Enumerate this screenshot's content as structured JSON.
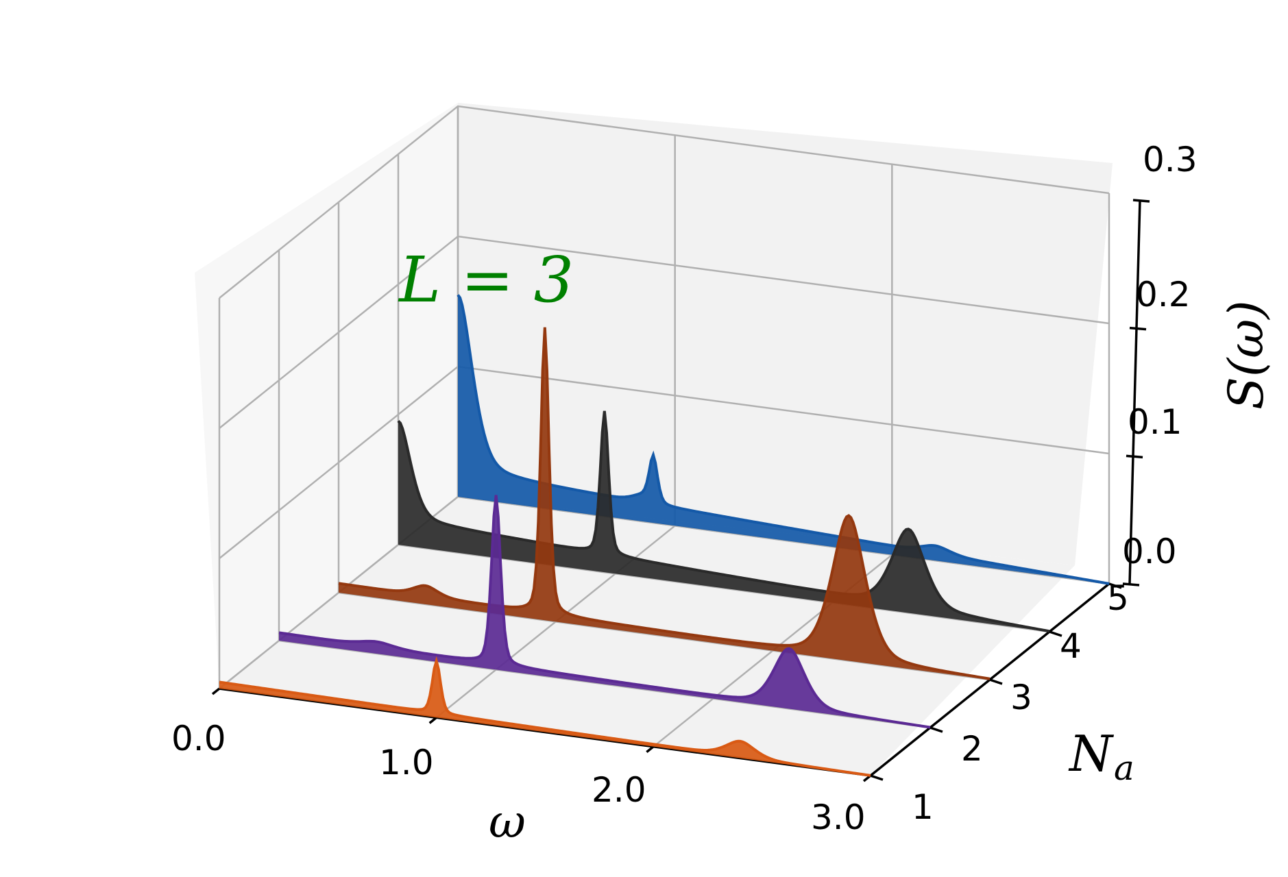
{
  "chart_data": {
    "type": "3d-waterfall",
    "annotation": "L = 3",
    "xlabel": "ω",
    "ylabel": "N",
    "ylabel_sub": "a",
    "zlabel": "S(ω)",
    "xlim": [
      0,
      3
    ],
    "ylim": [
      1,
      5
    ],
    "zlim": [
      0,
      0.3
    ],
    "x_ticks": [
      "0.0",
      "1.0",
      "2.0",
      "3.0"
    ],
    "y_ticks": [
      "1",
      "2",
      "3",
      "4",
      "5"
    ],
    "z_ticks": [
      "0.0",
      "0.1",
      "0.2",
      "0.3"
    ],
    "grid": true,
    "series": [
      {
        "na": 1,
        "color": "#d95a14",
        "baseline": [
          0.005,
          0.0
        ],
        "peaks": [
          [
            1.0,
            0.04,
            0.02
          ],
          [
            2.4,
            0.012,
            0.07
          ]
        ]
      },
      {
        "na": 2,
        "color": "#5b2a94",
        "baseline": [
          0.006,
          0.0
        ],
        "peaks": [
          [
            0.45,
            0.004,
            0.08
          ],
          [
            1.0,
            0.13,
            0.022
          ],
          [
            2.35,
            0.045,
            0.075
          ]
        ]
      },
      {
        "na": 3,
        "color": "#94380f",
        "baseline": [
          0.007,
          0.0
        ],
        "peaks": [
          [
            0.4,
            0.008,
            0.06
          ],
          [
            0.95,
            0.22,
            0.02
          ],
          [
            2.35,
            0.11,
            0.08
          ]
        ]
      },
      {
        "na": 4,
        "color": "#2a2a2a",
        "baseline": [
          0.02,
          0.0
        ],
        "peaks": [
          [
            0.0,
            0.075,
            0.06
          ],
          [
            0.95,
            0.11,
            0.02
          ],
          [
            2.35,
            0.06,
            0.08
          ]
        ]
      },
      {
        "na": 5,
        "color": "#1459a8",
        "baseline": [
          0.02,
          0.0
        ],
        "peaks": [
          [
            0.0,
            0.135,
            0.07
          ],
          [
            0.9,
            0.035,
            0.02
          ],
          [
            0.85,
            0.005,
            0.05
          ],
          [
            2.2,
            0.006,
            0.07
          ]
        ]
      }
    ]
  }
}
